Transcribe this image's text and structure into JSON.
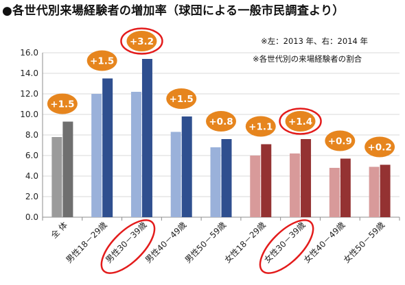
{
  "title": "●各世代別来場経験者の増加率（球団による一般市民調査より）",
  "notes": [
    "※左：2013 年、右：2014 年",
    "※各世代別の来場経験者の割合"
  ],
  "colors": {
    "total_2013": "#9b9b9b",
    "total_2014": "#6f6f6f",
    "male_2013": "#9ab1da",
    "male_2014": "#2f4f8f",
    "female_2013": "#d89a9a",
    "female_2014": "#943232",
    "bubble": "#e6851e",
    "highlight": "#e31b1b",
    "grid": "#d9d9d9"
  },
  "chart_data": {
    "type": "bar",
    "ylim": [
      0,
      16
    ],
    "yticks": [
      "0.0",
      "2.0",
      "4.0",
      "6.0",
      "8.0",
      "10.0",
      "12.0",
      "14.0",
      "16.0"
    ],
    "grid": true,
    "categories": [
      "全 体",
      "男性18－29歳",
      "男性30－39歳",
      "男性40－49歳",
      "男性50－59歳",
      "女性18－29歳",
      "女性30－39歳",
      "女性40－49歳",
      "女性50－59歳"
    ],
    "groups": [
      "total",
      "male",
      "male",
      "male",
      "male",
      "female",
      "female",
      "female",
      "female"
    ],
    "series": [
      {
        "values": [
          7.8,
          12.0,
          12.2,
          8.3,
          6.8,
          6.0,
          6.2,
          4.8,
          4.9
        ]
      },
      {
        "values": [
          9.3,
          13.5,
          15.4,
          9.8,
          7.6,
          7.1,
          7.6,
          5.7,
          5.1
        ]
      }
    ],
    "increase_labels": [
      "+1.5",
      "+1.5",
      "+3.2",
      "+1.5",
      "+0.8",
      "+1.1",
      "+1.4",
      "+0.9",
      "+0.2"
    ],
    "highlighted": [
      "男性30－39歳",
      "女性30－39歳"
    ]
  }
}
